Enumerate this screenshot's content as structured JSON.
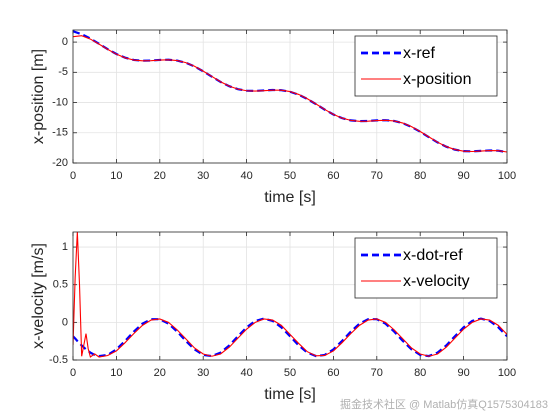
{
  "chart_data": [
    {
      "type": "line",
      "x": [
        0,
        2,
        4,
        6,
        8,
        10,
        12,
        14,
        16,
        18,
        20,
        22,
        24,
        26,
        28,
        30,
        32,
        34,
        36,
        38,
        40,
        42,
        44,
        46,
        48,
        50,
        52,
        54,
        56,
        58,
        60,
        62,
        64,
        66,
        68,
        70,
        72,
        74,
        76,
        78,
        80,
        82,
        84,
        86,
        88,
        90,
        92,
        94,
        96,
        98,
        100
      ],
      "series": [
        {
          "name": "x-ref",
          "color": "#0000ff",
          "dash": true,
          "values": [
            1.79,
            1.3,
            0.59,
            -0.28,
            -1.17,
            -1.97,
            -2.58,
            -2.95,
            -3.08,
            -3.05,
            -2.95,
            -2.92,
            -3.05,
            -3.42,
            -4.03,
            -4.83,
            -5.72,
            -6.59,
            -7.3,
            -7.79,
            -8.04,
            -8.08,
            -8.0,
            -7.92,
            -7.96,
            -8.21,
            -8.7,
            -9.41,
            -10.28,
            -11.17,
            -11.97,
            -12.58,
            -12.95,
            -13.08,
            -13.05,
            -12.95,
            -12.92,
            -13.05,
            -13.42,
            -14.03,
            -14.83,
            -15.72,
            -16.59,
            -17.3,
            -17.79,
            -18.04,
            -18.08,
            -18.0,
            -17.92,
            -17.96,
            -18.21
          ]
        },
        {
          "name": "x-position",
          "color": "#ff0000",
          "dash": false,
          "values": [
            0.9,
            1.05,
            0.5,
            -0.33,
            -1.2,
            -2.0,
            -2.6,
            -2.97,
            -3.1,
            -3.08,
            -2.98,
            -2.94,
            -3.05,
            -3.4,
            -4.0,
            -4.8,
            -5.68,
            -6.56,
            -7.28,
            -7.78,
            -8.05,
            -8.1,
            -8.03,
            -7.95,
            -7.96,
            -8.18,
            -8.66,
            -9.37,
            -10.24,
            -11.14,
            -11.95,
            -12.57,
            -12.95,
            -13.1,
            -13.08,
            -12.98,
            -12.94,
            -13.04,
            -13.39,
            -13.99,
            -14.79,
            -15.68,
            -16.56,
            -17.28,
            -17.78,
            -18.05,
            -18.1,
            -18.03,
            -17.95,
            -17.96,
            -18.18
          ]
        }
      ],
      "xlim": [
        0,
        100
      ],
      "xticks": [
        0,
        10,
        20,
        30,
        40,
        50,
        60,
        70,
        80,
        90,
        100
      ],
      "ylim": [
        -20,
        2
      ],
      "yticks": [
        0,
        -5,
        -10,
        -15,
        -20
      ],
      "xlabel": "time [s]",
      "ylabel": "x-position [m]",
      "grid": true,
      "legend": "northeast"
    },
    {
      "type": "line",
      "x": [
        0,
        0.5,
        1,
        1.5,
        2,
        2.5,
        3,
        3.5,
        4,
        5,
        6,
        8,
        10,
        12,
        14,
        16,
        18,
        20,
        22,
        24,
        26,
        28,
        30,
        32,
        34,
        36,
        38,
        40,
        42,
        44,
        46,
        48,
        50,
        52,
        54,
        56,
        58,
        60,
        62,
        64,
        66,
        68,
        70,
        72,
        74,
        76,
        78,
        80,
        82,
        84,
        86,
        88,
        90,
        92,
        94,
        96,
        98,
        100
      ],
      "series": [
        {
          "name": "x-dot-ref",
          "color": "#0000ff",
          "dash": true,
          "values": [
            -0.184,
            -0.215,
            -0.247,
            -0.277,
            -0.307,
            -0.333,
            -0.359,
            -0.38,
            -0.402,
            -0.433,
            -0.448,
            -0.433,
            -0.359,
            -0.247,
            -0.123,
            -0.018,
            0.042,
            0.042,
            -0.018,
            -0.123,
            -0.247,
            -0.359,
            -0.433,
            -0.448,
            -0.402,
            -0.307,
            -0.184,
            -0.066,
            0.019,
            0.05,
            0.019,
            -0.066,
            -0.184,
            -0.307,
            -0.402,
            -0.448,
            -0.433,
            -0.359,
            -0.247,
            -0.123,
            -0.018,
            0.042,
            0.042,
            -0.018,
            -0.123,
            -0.247,
            -0.359,
            -0.433,
            -0.448,
            -0.402,
            -0.307,
            -0.184,
            -0.066,
            0.019,
            0.05,
            0.019,
            -0.066,
            -0.184
          ]
        },
        {
          "name": "x-velocity",
          "color": "#ff0000",
          "dash": false,
          "values": [
            -0.3,
            0.6,
            1.2,
            0.5,
            -0.45,
            -0.3,
            -0.15,
            -0.35,
            -0.46,
            -0.42,
            -0.46,
            -0.44,
            -0.38,
            -0.27,
            -0.15,
            -0.04,
            0.03,
            0.045,
            0.0,
            -0.1,
            -0.22,
            -0.34,
            -0.42,
            -0.45,
            -0.42,
            -0.33,
            -0.21,
            -0.09,
            0.0,
            0.045,
            0.03,
            -0.04,
            -0.16,
            -0.28,
            -0.39,
            -0.445,
            -0.44,
            -0.38,
            -0.27,
            -0.15,
            -0.04,
            0.03,
            0.045,
            0.0,
            -0.1,
            -0.22,
            -0.34,
            -0.42,
            -0.45,
            -0.42,
            -0.33,
            -0.21,
            -0.09,
            0.0,
            0.045,
            0.03,
            -0.04,
            -0.16
          ]
        }
      ],
      "xlim": [
        0,
        100
      ],
      "xticks": [
        0,
        10,
        20,
        30,
        40,
        50,
        60,
        70,
        80,
        90,
        100
      ],
      "ylim": [
        -0.5,
        1.2
      ],
      "yticks": [
        -0.5,
        0,
        0.5,
        1
      ],
      "xlabel": "time [s]",
      "ylabel": "x-velocity [m/s]",
      "grid": true,
      "legend": "northeast"
    }
  ],
  "watermark": "掘金技术社区 @ Matlab仿真Q1575304183"
}
